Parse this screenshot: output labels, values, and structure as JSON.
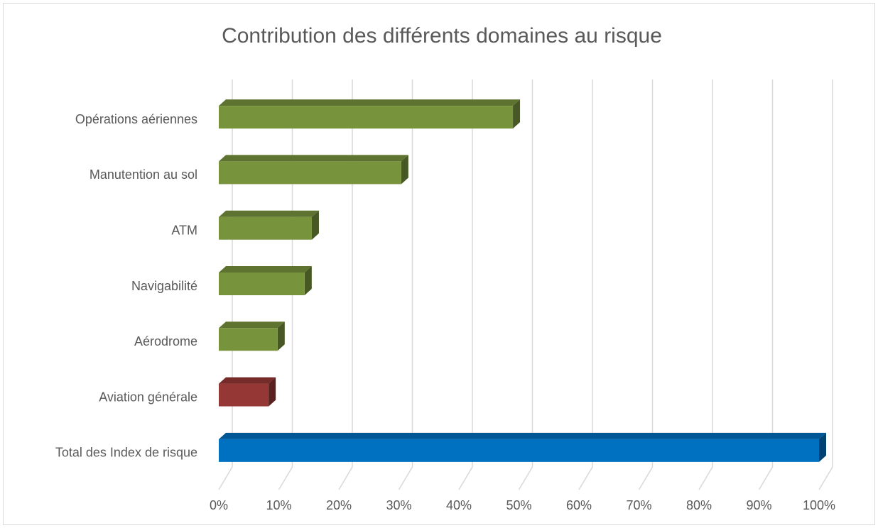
{
  "chart_data": {
    "type": "bar3d_horizontal",
    "title": "Contribution des différents domaines au risque",
    "categories": [
      "Opérations aériennes",
      "Manutention au sol",
      "ATM",
      "Navigabilité",
      "Aérodrome",
      "Aviation générale",
      "Total des Index de risque"
    ],
    "values": [
      49,
      30.4,
      15.5,
      14.3,
      9.8,
      8.3,
      100
    ],
    "colors": [
      "#77933c",
      "#77933c",
      "#77933c",
      "#77933c",
      "#77933c",
      "#953735",
      "#0070c0"
    ],
    "xlim": [
      0,
      100
    ],
    "xticks": [
      {
        "value": 0,
        "label": "0%"
      },
      {
        "value": 10,
        "label": "10%"
      },
      {
        "value": 20,
        "label": "20%"
      },
      {
        "value": 30,
        "label": "30%"
      },
      {
        "value": 40,
        "label": "40%"
      },
      {
        "value": 50,
        "label": "50%"
      },
      {
        "value": 60,
        "label": "60%"
      },
      {
        "value": 70,
        "label": "70%"
      },
      {
        "value": 80,
        "label": "80%"
      },
      {
        "value": 90,
        "label": "90%"
      },
      {
        "value": 100,
        "label": "100%"
      }
    ],
    "grid": true
  }
}
